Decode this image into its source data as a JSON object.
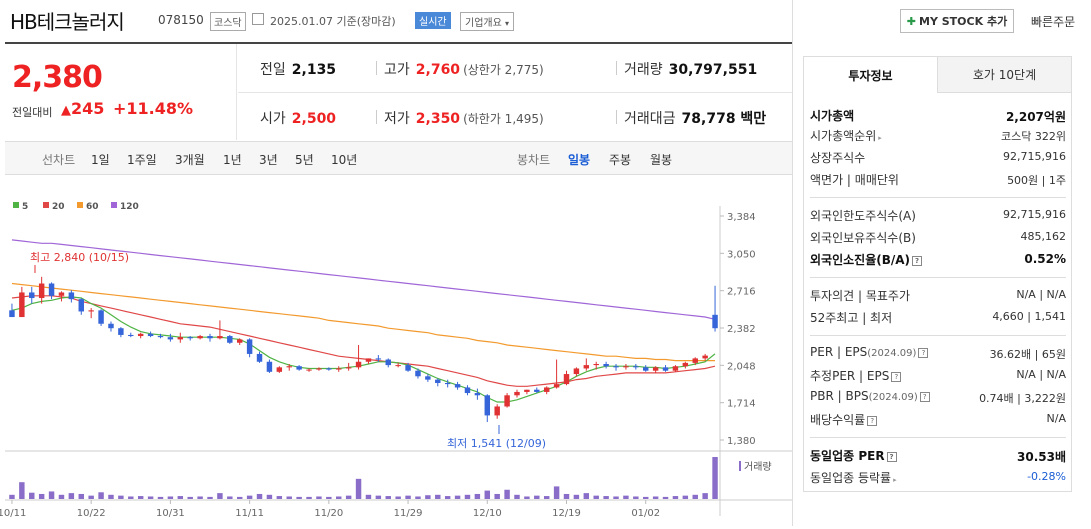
{
  "header": {
    "name": "HB테크놀러지",
    "code": "078150",
    "market": "코스닥",
    "date": "2025.01.07  기준(장마감)",
    "realtime": "실시간",
    "corp_overview": "기업개요",
    "my_stock": "MY STOCK 추가",
    "quick_order": "빠른주문"
  },
  "price": {
    "current": "2,380",
    "change_label": "전일대비",
    "change": "245",
    "percent": "+11.48%"
  },
  "stats": {
    "prev_label": "전일",
    "prev": "2,135",
    "high_label": "고가",
    "high": "2,760",
    "high_limit": "(상한가 2,775)",
    "volume_label": "거래량",
    "volume": "30,797,551",
    "open_label": "시가",
    "open": "2,500",
    "low_label": "저가",
    "low": "2,350",
    "low_limit": "(하한가 1,495)",
    "amount_label": "거래대금",
    "amount": "78,778 백만"
  },
  "toolbar": {
    "line_chart": "선차트",
    "d1": "1일",
    "w1": "1주일",
    "m3": "3개월",
    "y1": "1년",
    "y3": "3년",
    "y5": "5년",
    "y10": "10년",
    "candle_chart": "봉차트",
    "daily": "일봉",
    "weekly": "주봉",
    "monthly": "월봉"
  },
  "chart_data": {
    "type": "candlestick",
    "legend": [
      "5",
      "20",
      "60",
      "120"
    ],
    "legend_colors": [
      "#4fb444",
      "#e04848",
      "#f39a2e",
      "#a066d8"
    ],
    "y_ticks": [
      "3,384",
      "3,050",
      "2,716",
      "2,382",
      "2,048",
      "1,714",
      "1,380"
    ],
    "x_ticks": [
      "10/11",
      "10/22",
      "10/31",
      "11/11",
      "11/20",
      "11/29",
      "12/10",
      "12/19",
      "01/02"
    ],
    "high_annotation": "최고 2,840 (10/15)",
    "low_annotation": "최저 1,541 (12/09)",
    "volume_label": "거래량",
    "up_color": "#e03232",
    "down_color": "#3565d9",
    "candles": [
      [
        2540,
        2600,
        2480,
        2480
      ],
      [
        2480,
        2750,
        2480,
        2700
      ],
      [
        2700,
        2750,
        2600,
        2650
      ],
      [
        2650,
        2840,
        2600,
        2780
      ],
      [
        2780,
        2790,
        2640,
        2670
      ],
      [
        2670,
        2710,
        2620,
        2700
      ],
      [
        2700,
        2720,
        2610,
        2640
      ],
      [
        2640,
        2650,
        2500,
        2530
      ],
      [
        2530,
        2560,
        2470,
        2540
      ],
      [
        2540,
        2550,
        2400,
        2420
      ],
      [
        2420,
        2440,
        2350,
        2380
      ],
      [
        2380,
        2390,
        2300,
        2320
      ],
      [
        2320,
        2340,
        2300,
        2310
      ],
      [
        2310,
        2340,
        2290,
        2330
      ],
      [
        2330,
        2350,
        2300,
        2310
      ],
      [
        2310,
        2330,
        2290,
        2300
      ],
      [
        2300,
        2330,
        2260,
        2280
      ],
      [
        2280,
        2340,
        2250,
        2300
      ],
      [
        2300,
        2310,
        2270,
        2290
      ],
      [
        2290,
        2320,
        2280,
        2310
      ],
      [
        2310,
        2330,
        2260,
        2290
      ],
      [
        2290,
        2450,
        2280,
        2310
      ],
      [
        2310,
        2320,
        2240,
        2250
      ],
      [
        2250,
        2290,
        2230,
        2280
      ],
      [
        2280,
        2290,
        2120,
        2150
      ],
      [
        2150,
        2170,
        2070,
        2080
      ],
      [
        2080,
        2100,
        1980,
        1990
      ],
      [
        1990,
        2040,
        1980,
        2030
      ],
      [
        2030,
        2060,
        2000,
        2040
      ],
      [
        2040,
        2050,
        2000,
        2010
      ],
      [
        2010,
        2020,
        1990,
        2010
      ],
      [
        2010,
        2030,
        2000,
        2020
      ],
      [
        2020,
        2030,
        2000,
        2010
      ],
      [
        2010,
        2040,
        1990,
        2020
      ],
      [
        2020,
        2070,
        2000,
        2030
      ],
      [
        2030,
        2230,
        2010,
        2080
      ],
      [
        2080,
        2110,
        2060,
        2110
      ],
      [
        2110,
        2140,
        2080,
        2100
      ],
      [
        2100,
        2110,
        2030,
        2050
      ],
      [
        2050,
        2070,
        2030,
        2050
      ],
      [
        2050,
        2070,
        1990,
        2000
      ],
      [
        2000,
        2020,
        1930,
        1950
      ],
      [
        1950,
        1970,
        1900,
        1920
      ],
      [
        1920,
        1930,
        1860,
        1890
      ],
      [
        1890,
        1920,
        1850,
        1880
      ],
      [
        1880,
        1900,
        1830,
        1850
      ],
      [
        1850,
        1870,
        1780,
        1800
      ],
      [
        1800,
        1840,
        1740,
        1780
      ],
      [
        1780,
        1790,
        1541,
        1600
      ],
      [
        1600,
        1700,
        1570,
        1680
      ],
      [
        1680,
        1800,
        1670,
        1780
      ],
      [
        1780,
        1830,
        1760,
        1810
      ],
      [
        1810,
        1830,
        1790,
        1830
      ],
      [
        1830,
        1850,
        1800,
        1810
      ],
      [
        1810,
        1860,
        1790,
        1850
      ],
      [
        1850,
        2100,
        1840,
        1880
      ],
      [
        1880,
        2000,
        1870,
        1970
      ],
      [
        1970,
        2030,
        1950,
        2020
      ],
      [
        2020,
        2110,
        2000,
        2050
      ],
      [
        2050,
        2080,
        2010,
        2060
      ],
      [
        2060,
        2080,
        2020,
        2040
      ],
      [
        2040,
        2060,
        2000,
        2030
      ],
      [
        2030,
        2060,
        2010,
        2040
      ],
      [
        2040,
        2060,
        2010,
        2030
      ],
      [
        2030,
        2050,
        1990,
        2000
      ],
      [
        2000,
        2040,
        1980,
        2030
      ],
      [
        2030,
        2050,
        1990,
        2000
      ],
      [
        2000,
        2050,
        1990,
        2040
      ],
      [
        2040,
        2080,
        2020,
        2070
      ],
      [
        2070,
        2120,
        2050,
        2110
      ],
      [
        2110,
        2150,
        2090,
        2135
      ],
      [
        2500,
        2760,
        2350,
        2380
      ]
    ],
    "volume": [
      10,
      40,
      15,
      12,
      18,
      10,
      14,
      12,
      8,
      16,
      10,
      8,
      6,
      7,
      6,
      5,
      6,
      7,
      5,
      6,
      5,
      14,
      6,
      5,
      8,
      12,
      10,
      7,
      6,
      5,
      5,
      6,
      5,
      6,
      8,
      48,
      10,
      8,
      7,
      6,
      8,
      6,
      9,
      10,
      7,
      8,
      10,
      12,
      20,
      12,
      22,
      10,
      6,
      8,
      7,
      30,
      12,
      10,
      14,
      8,
      7,
      6,
      8,
      6,
      5,
      6,
      5,
      7,
      8,
      10,
      14,
      100
    ],
    "ma5": [
      2540,
      2560,
      2600,
      2620,
      2630,
      2650,
      2660,
      2650,
      2600,
      2560,
      2500,
      2440,
      2390,
      2350,
      2330,
      2320,
      2310,
      2300,
      2300,
      2300,
      2300,
      2300,
      2290,
      2280,
      2240,
      2180,
      2120,
      2080,
      2050,
      2030,
      2020,
      2020,
      2020,
      2020,
      2030,
      2040,
      2060,
      2080,
      2080,
      2070,
      2050,
      2010,
      1970,
      1930,
      1900,
      1870,
      1840,
      1810,
      1760,
      1720,
      1720,
      1740,
      1770,
      1800,
      1830,
      1860,
      1900,
      1950,
      1990,
      2020,
      2040,
      2040,
      2040,
      2040,
      2030,
      2030,
      2020,
      2030,
      2040,
      2060,
      2080,
      2150
    ],
    "ma20": [
      2650,
      2660,
      2670,
      2670,
      2670,
      2660,
      2650,
      2620,
      2600,
      2580,
      2560,
      2540,
      2520,
      2500,
      2480,
      2460,
      2440,
      2420,
      2410,
      2400,
      2390,
      2370,
      2350,
      2330,
      2310,
      2290,
      2270,
      2250,
      2230,
      2210,
      2190,
      2170,
      2150,
      2130,
      2120,
      2110,
      2100,
      2090,
      2080,
      2070,
      2060,
      2050,
      2040,
      2020,
      2000,
      1980,
      1960,
      1940,
      1910,
      1890,
      1870,
      1860,
      1860,
      1870,
      1880,
      1890,
      1900,
      1920,
      1930,
      1950,
      1960,
      1970,
      1980,
      1980,
      1980,
      1980,
      1980,
      1990,
      2000,
      2010,
      2020,
      2040
    ],
    "ma60": [
      2780,
      2770,
      2760,
      2750,
      2740,
      2730,
      2720,
      2710,
      2700,
      2690,
      2680,
      2670,
      2660,
      2650,
      2640,
      2630,
      2620,
      2610,
      2600,
      2590,
      2580,
      2570,
      2560,
      2550,
      2540,
      2530,
      2520,
      2510,
      2500,
      2490,
      2480,
      2470,
      2450,
      2440,
      2430,
      2420,
      2410,
      2400,
      2380,
      2370,
      2360,
      2350,
      2340,
      2320,
      2310,
      2300,
      2290,
      2270,
      2260,
      2250,
      2230,
      2220,
      2210,
      2200,
      2190,
      2180,
      2170,
      2160,
      2150,
      2140,
      2130,
      2130,
      2120,
      2110,
      2110,
      2100,
      2100,
      2090,
      2090,
      2090,
      2090,
      2090
    ],
    "ma120": [
      3170,
      3160,
      3150,
      3140,
      3140,
      3130,
      3120,
      3110,
      3100,
      3090,
      3080,
      3070,
      3060,
      3050,
      3040,
      3030,
      3020,
      3010,
      3000,
      2990,
      2980,
      2970,
      2960,
      2950,
      2940,
      2930,
      2920,
      2910,
      2900,
      2890,
      2880,
      2870,
      2860,
      2850,
      2840,
      2830,
      2820,
      2810,
      2800,
      2790,
      2780,
      2770,
      2760,
      2750,
      2740,
      2730,
      2720,
      2710,
      2700,
      2690,
      2680,
      2670,
      2660,
      2650,
      2640,
      2630,
      2620,
      2610,
      2600,
      2590,
      2580,
      2570,
      2560,
      2550,
      2540,
      2530,
      2520,
      2510,
      2500,
      2490,
      2480,
      2460
    ]
  },
  "panel": {
    "tab_info": "투자정보",
    "tab_quote": "호가 10단계",
    "market_cap_label": "시가총액",
    "market_cap": "2,207억원",
    "cap_rank_label": "시가총액순위",
    "cap_rank": "코스닥 322위",
    "shares_label": "상장주식수",
    "shares": "92,715,916",
    "par_label": "액면가 | 매매단위",
    "par": "500원 | 1주",
    "foreign_limit_label": "외국인한도주식수(A)",
    "foreign_limit": "92,715,916",
    "foreign_own_label": "외국인보유주식수(B)",
    "foreign_own": "485,162",
    "foreign_rate_label": "외국인소진율(B/A)",
    "foreign_rate": "0.52%",
    "opinion_label": "투자의견 | 목표주가",
    "opinion": "N/A | N/A",
    "w52_label": "52주최고 | 최저",
    "w52": "4,660 | 1,541",
    "per_label": "PER | EPS",
    "per_date": "(2024.09)",
    "per": "36.62배 | 65원",
    "est_label": "추정PER | EPS",
    "est": "N/A | N/A",
    "pbr_label": "PBR | BPS",
    "pbr_date": "(2024.09)",
    "pbr": "0.74배 | 3,222원",
    "div_label": "배당수익률",
    "div": "N/A",
    "ind_per_label": "동일업종 PER",
    "ind_per": "30.53배",
    "ind_rate_label": "동일업종 등락률",
    "ind_rate": "-0.28%"
  }
}
